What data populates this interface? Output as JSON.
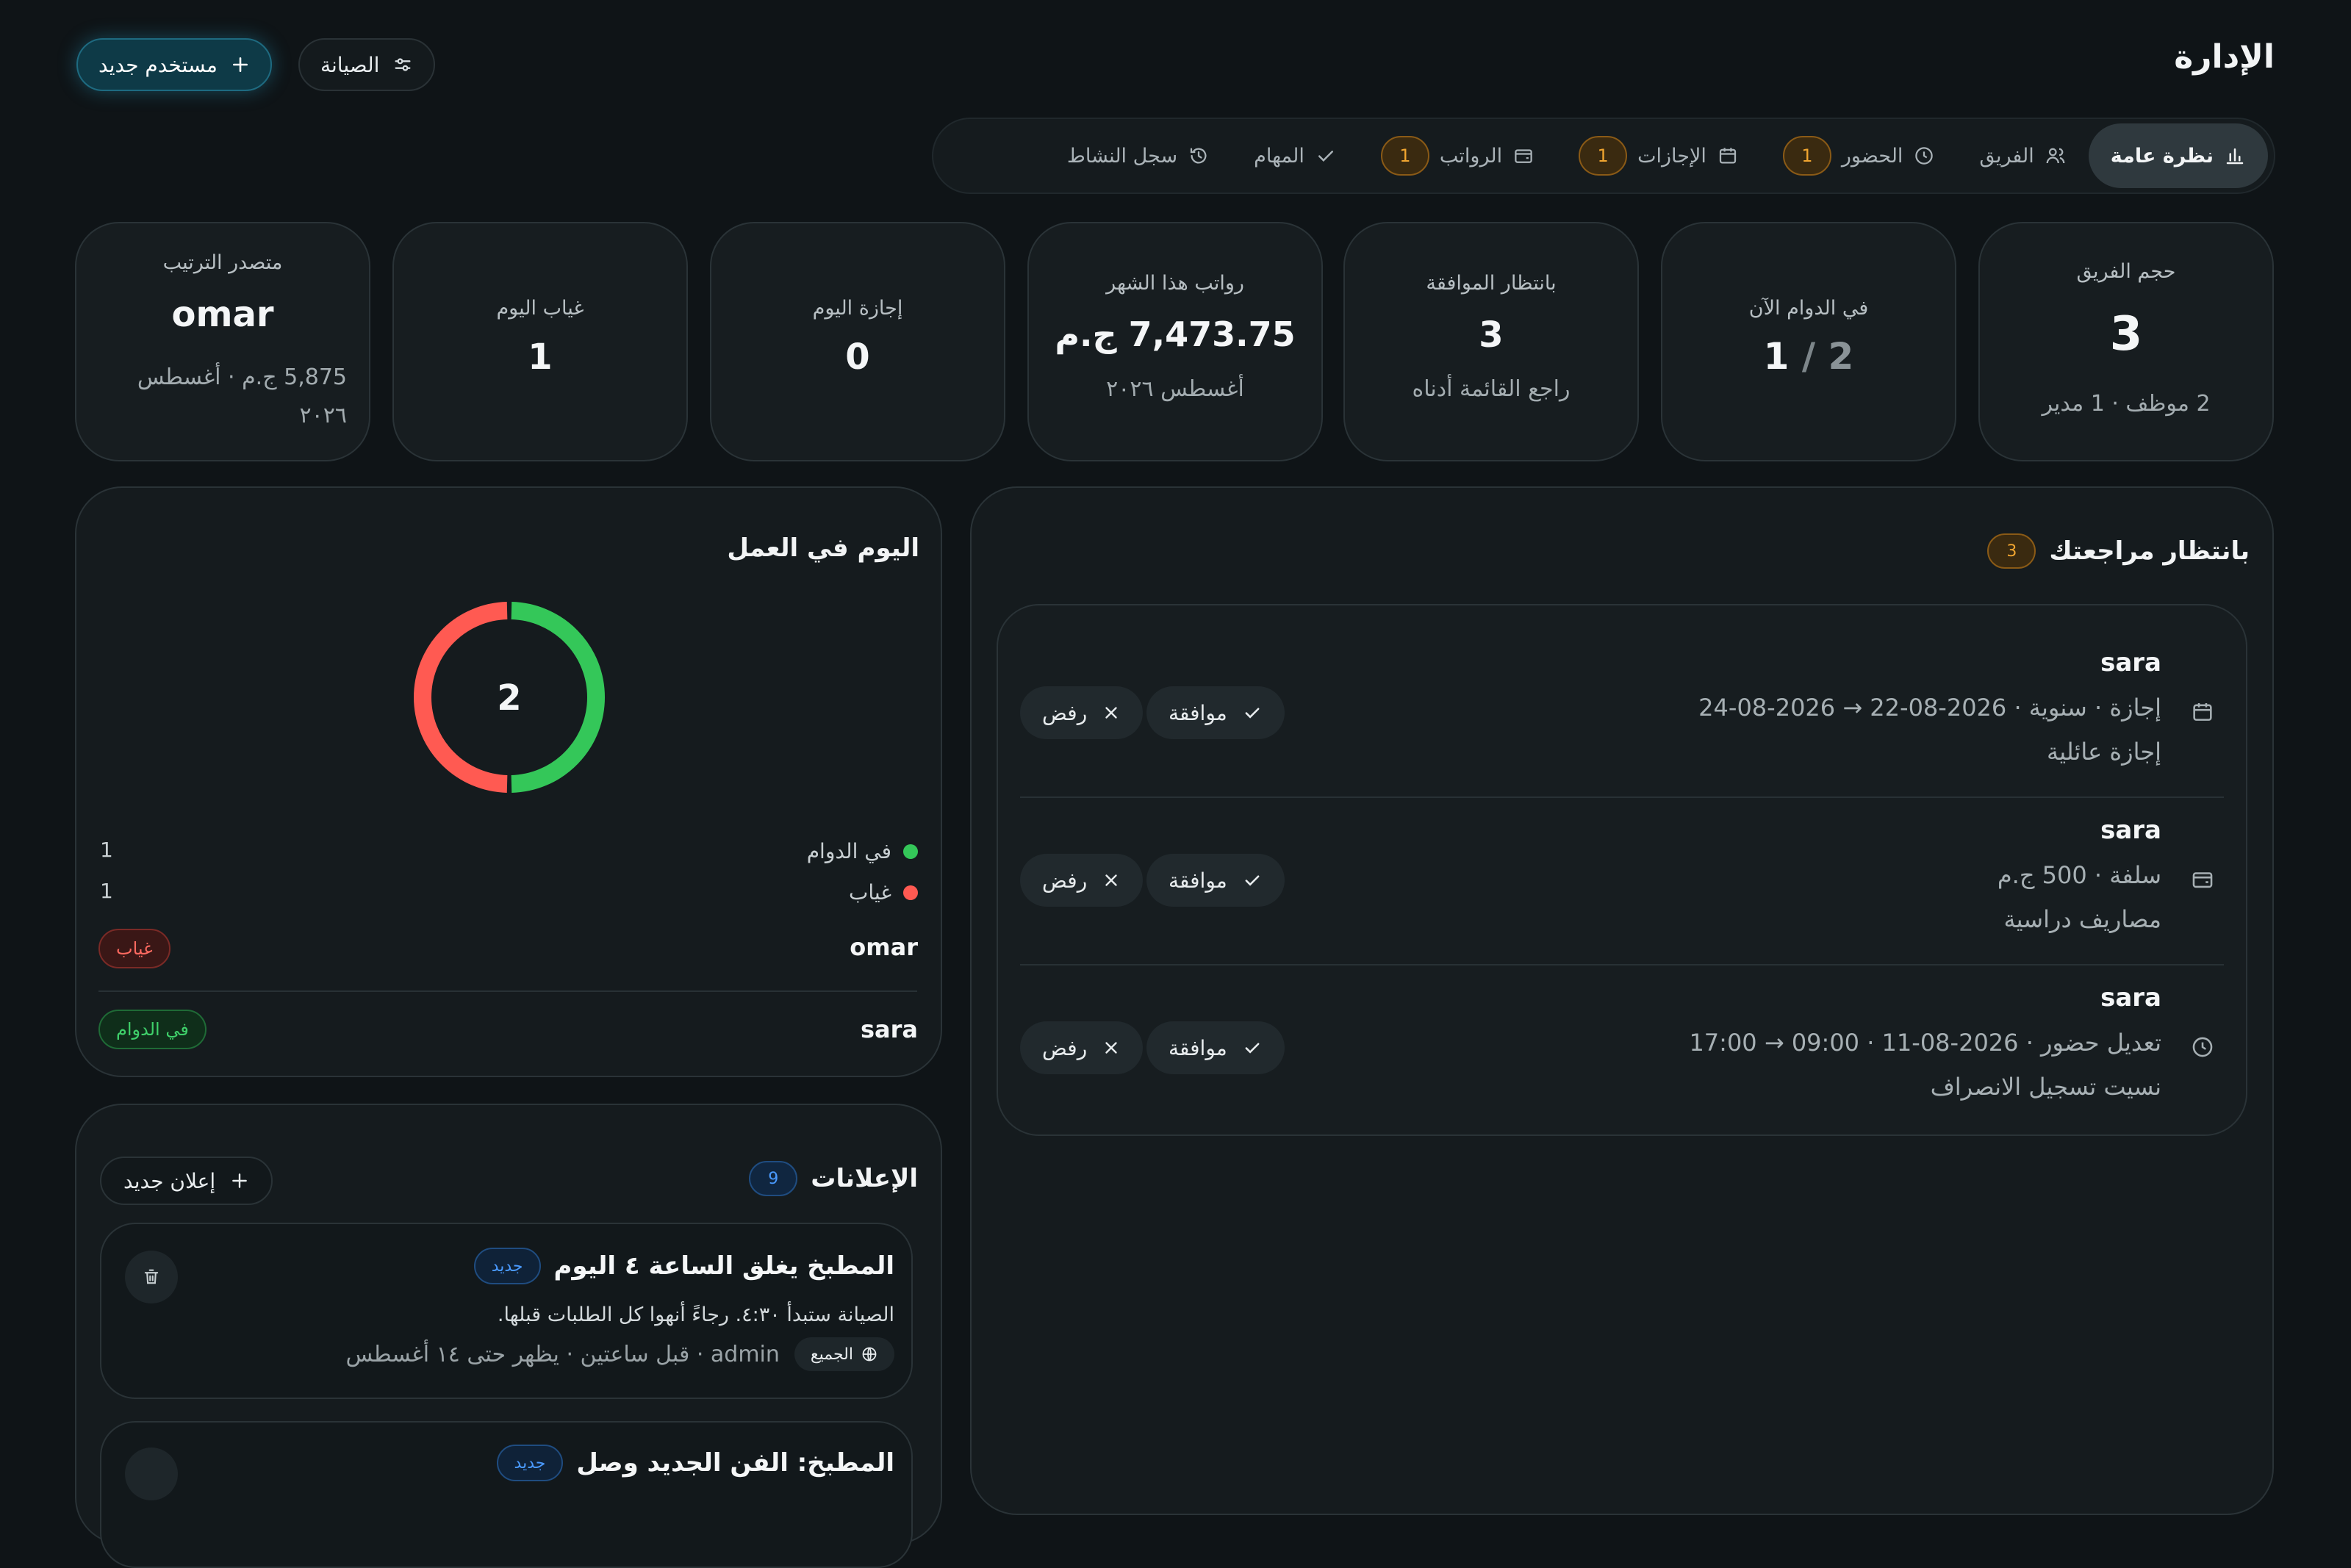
{
  "header": {
    "title": "الإدارة",
    "new_user_label": "مستخدم جديد",
    "maintenance_label": "الصيانة"
  },
  "tabs": [
    {
      "label": "نظرة عامة",
      "icon": "bar-chart-icon",
      "active": true
    },
    {
      "label": "الفريق",
      "icon": "users-icon"
    },
    {
      "label": "الحضور",
      "icon": "clock-icon",
      "badge": "1"
    },
    {
      "label": "الإجازات",
      "icon": "calendar-icon",
      "badge": "1"
    },
    {
      "label": "الرواتب",
      "icon": "wallet-icon",
      "badge": "1"
    },
    {
      "label": "المهام",
      "icon": "check-icon"
    },
    {
      "label": "سجل النشاط",
      "icon": "history-icon"
    }
  ],
  "stats": {
    "team_size": {
      "label": "حجم الفريق",
      "value": "3",
      "sub": "2 موظف · 1 مدير"
    },
    "on_duty": {
      "label": "في الدوام الآن",
      "value": "1",
      "total": "2"
    },
    "pending": {
      "label": "بانتظار الموافقة",
      "value": "3",
      "sub": "راجع القائمة أدناه"
    },
    "payroll": {
      "label": "رواتب هذا الشهر",
      "value": "7,473.75 ج.م",
      "sub": "أغسطس ٢٠٢٦"
    },
    "leave_today": {
      "label": "إجازة اليوم",
      "value": "0"
    },
    "absent_today": {
      "label": "غياب اليوم",
      "value": "1"
    },
    "top_ranked": {
      "label": "متصدر الترتيب",
      "value": "omar",
      "sub": "5,875 ج.م · أغسطس ٢٠٢٦"
    }
  },
  "pending_review": {
    "title": "بانتظار مراجعتك",
    "count": "3",
    "approve_label": "موافقة",
    "reject_label": "رفض",
    "items": [
      {
        "name": "sara",
        "icon": "calendar-icon",
        "line1": "إجازة · سنوية · 2026-08-22 → 2026-08-24",
        "line2": "إجازة عائلية"
      },
      {
        "name": "sara",
        "icon": "wallet-icon",
        "line1": "سلفة · 500 ج.م",
        "line2": "مصاريف دراسية"
      },
      {
        "name": "sara",
        "icon": "clock-icon",
        "line1": "تعديل حضور · 2026-08-11 · 09:00 → 17:00",
        "line2": "نسيت تسجيل الانصراف"
      }
    ]
  },
  "today_at_work": {
    "title": "اليوم في العمل",
    "center_value": "2",
    "legend": [
      {
        "label": "في الدوام",
        "value": "1",
        "color": "#34c759"
      },
      {
        "label": "غياب",
        "value": "1",
        "color": "#ff5a52"
      }
    ],
    "people": [
      {
        "name": "omar",
        "status": "غياب"
      },
      {
        "name": "sara",
        "status": "في الدوام"
      }
    ]
  },
  "chart_data": {
    "type": "pie",
    "categories": [
      "في الدوام",
      "غياب"
    ],
    "values": [
      1,
      1
    ],
    "colors": [
      "#34c759",
      "#ff5a52"
    ],
    "title": "اليوم في العمل"
  },
  "announcements": {
    "title": "الإعلانات",
    "count": "9",
    "new_label": "إعلان جديد",
    "items": [
      {
        "title": "المطبخ يغلق الساعة ٤ اليوم",
        "badge": "جديد",
        "body": "الصيانة ستبدأ ٤:٣٠. رجاءً أنهوا كل الطلبات قبلها.",
        "audience": "الجميع",
        "meta": "admin · قبل ساعتين · يظهر حتى ١٤ أغسطس"
      },
      {
        "title": "المطبخ: الفن الجديد وصل",
        "badge": "جديد"
      }
    ]
  }
}
